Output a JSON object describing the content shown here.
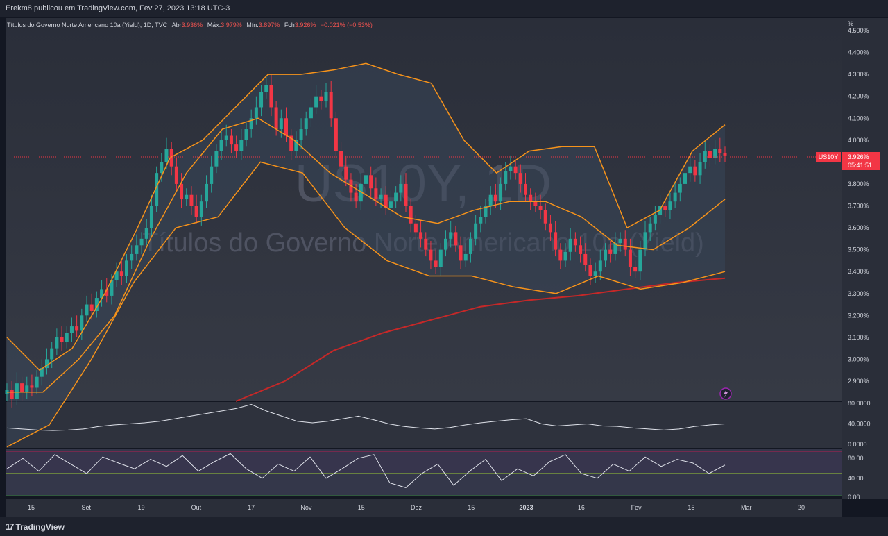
{
  "header": {
    "publisher_text": "Erekm8 publicou em TradingView.com, Fev 27, 2023 13:18 UTC-3"
  },
  "legend": {
    "instrument": "Títulos do Governo Norte Americano 10a (Yield), 1D, TVC",
    "open_label": "Abr",
    "open_value": "3.936%",
    "high_label": "Máx.",
    "high_value": "3.979%",
    "low_label": "Mín.",
    "low_value": "3.897%",
    "close_label": "Fch",
    "close_value": "3.926%",
    "change": "−0.021% (−0.53%)"
  },
  "watermark": {
    "symbol": "US10Y, 1D",
    "name": "Títulos do Governo Norte Americano 10a (Yield)"
  },
  "price_axis": {
    "unit": "%",
    "ticks": [
      "4.500%",
      "4.400%",
      "4.300%",
      "4.200%",
      "4.100%",
      "4.000%",
      "3.900%",
      "3.800%",
      "3.700%",
      "3.600%",
      "3.500%",
      "3.400%",
      "3.300%",
      "3.200%",
      "3.100%",
      "3.000%",
      "2.900%"
    ]
  },
  "price_badge": {
    "ticker": "US10Y",
    "price": "3.926%",
    "countdown": "05:41:51"
  },
  "indicator1_axis": [
    "80.0000",
    "40.0000",
    "0.0000"
  ],
  "indicator2_axis": [
    "80.00",
    "40.00",
    "0.00"
  ],
  "time_axis": [
    "15",
    "Set",
    "19",
    "Out",
    "17",
    "Nov",
    "15",
    "Dez",
    "15",
    "2023",
    "16",
    "Fev",
    "15",
    "Mar",
    "20"
  ],
  "footer": {
    "brand": "TradingView"
  },
  "colors": {
    "up": "#26a69a",
    "down": "#f23645",
    "band": "#f7931a",
    "sma": "#c62828",
    "background": "#2a2e39",
    "accent_badge": "#f23645"
  },
  "chart_data": {
    "type": "candlestick",
    "title": "Títulos do Governo Norte Americano 10a (Yield), 1D, TVC",
    "ylabel": "%",
    "ylim": [
      2.84,
      4.53
    ],
    "close_series_approx": [
      2.86,
      2.82,
      2.89,
      2.85,
      2.88,
      2.87,
      2.92,
      2.96,
      3.0,
      3.05,
      3.1,
      3.08,
      3.12,
      3.15,
      3.13,
      3.2,
      3.25,
      3.22,
      3.28,
      3.32,
      3.29,
      3.36,
      3.4,
      3.38,
      3.45,
      3.48,
      3.52,
      3.55,
      3.6,
      3.7,
      3.85,
      3.9,
      3.96,
      3.88,
      3.8,
      3.73,
      3.75,
      3.7,
      3.65,
      3.72,
      3.8,
      3.88,
      3.95,
      4.0,
      4.02,
      3.98,
      3.95,
      4.0,
      4.05,
      4.1,
      4.15,
      4.22,
      4.25,
      4.15,
      4.05,
      4.1,
      4.02,
      3.95,
      4.0,
      4.05,
      4.1,
      4.15,
      4.2,
      4.18,
      4.22,
      4.1,
      3.95,
      3.88,
      3.82,
      3.76,
      3.72,
      3.8,
      3.84,
      3.78,
      3.73,
      3.75,
      3.69,
      3.72,
      3.76,
      3.8,
      3.7,
      3.62,
      3.58,
      3.55,
      3.5,
      3.45,
      3.42,
      3.5,
      3.55,
      3.58,
      3.52,
      3.45,
      3.48,
      3.55,
      3.62,
      3.65,
      3.7,
      3.75,
      3.72,
      3.8,
      3.86,
      3.88,
      3.85,
      3.8,
      3.75,
      3.72,
      3.7,
      3.68,
      3.62,
      3.58,
      3.5,
      3.45,
      3.49,
      3.55,
      3.52,
      3.48,
      3.43,
      3.38,
      3.4,
      3.45,
      3.5,
      3.48,
      3.53,
      3.55,
      3.5,
      3.42,
      3.4,
      3.5,
      3.58,
      3.62,
      3.66,
      3.7,
      3.68,
      3.72,
      3.76,
      3.8,
      3.85,
      3.88,
      3.84,
      3.9,
      3.95,
      3.92,
      3.96,
      3.94,
      3.93
    ],
    "bollinger_upper": [
      3.1,
      2.95,
      3.05,
      3.3,
      3.6,
      3.92,
      4.0,
      4.15,
      4.3,
      4.3,
      4.32,
      4.35,
      4.3,
      4.26,
      4.0,
      3.85,
      3.95,
      3.97,
      3.97,
      3.6,
      3.68,
      3.95,
      4.07
    ],
    "bollinger_middle": [
      2.85,
      2.85,
      3.0,
      3.2,
      3.55,
      3.85,
      4.05,
      4.1,
      4.0,
      3.85,
      3.75,
      3.65,
      3.62,
      3.68,
      3.72,
      3.72,
      3.65,
      3.52,
      3.5,
      3.6,
      3.73
    ],
    "bollinger_lower": [
      2.6,
      2.7,
      3.0,
      3.35,
      3.6,
      3.65,
      3.9,
      3.85,
      3.6,
      3.45,
      3.38,
      3.38,
      3.33,
      3.3,
      3.38,
      3.32,
      3.35,
      3.4
    ],
    "sma_long": [
      2.6,
      2.9,
      3.04,
      3.12,
      3.18,
      3.24,
      3.27,
      3.29,
      3.32,
      3.35,
      3.37
    ],
    "indicator1_values": [
      32,
      30,
      28,
      27,
      28,
      30,
      35,
      38,
      40,
      42,
      45,
      50,
      55,
      60,
      65,
      70,
      78,
      65,
      55,
      45,
      42,
      45,
      50,
      55,
      48,
      40,
      35,
      32,
      30,
      33,
      38,
      42,
      45,
      48,
      50,
      40,
      36,
      38,
      40,
      36,
      35,
      32,
      30,
      28,
      30,
      35,
      38,
      40
    ],
    "indicator2_values": [
      60,
      82,
      55,
      90,
      70,
      50,
      85,
      72,
      60,
      80,
      65,
      88,
      55,
      75,
      92,
      60,
      40,
      70,
      55,
      85,
      40,
      60,
      82,
      90,
      30,
      20,
      50,
      70,
      25,
      55,
      80,
      35,
      60,
      45,
      75,
      90,
      50,
      40,
      70,
      55,
      85,
      65,
      80,
      72,
      50,
      68
    ]
  }
}
